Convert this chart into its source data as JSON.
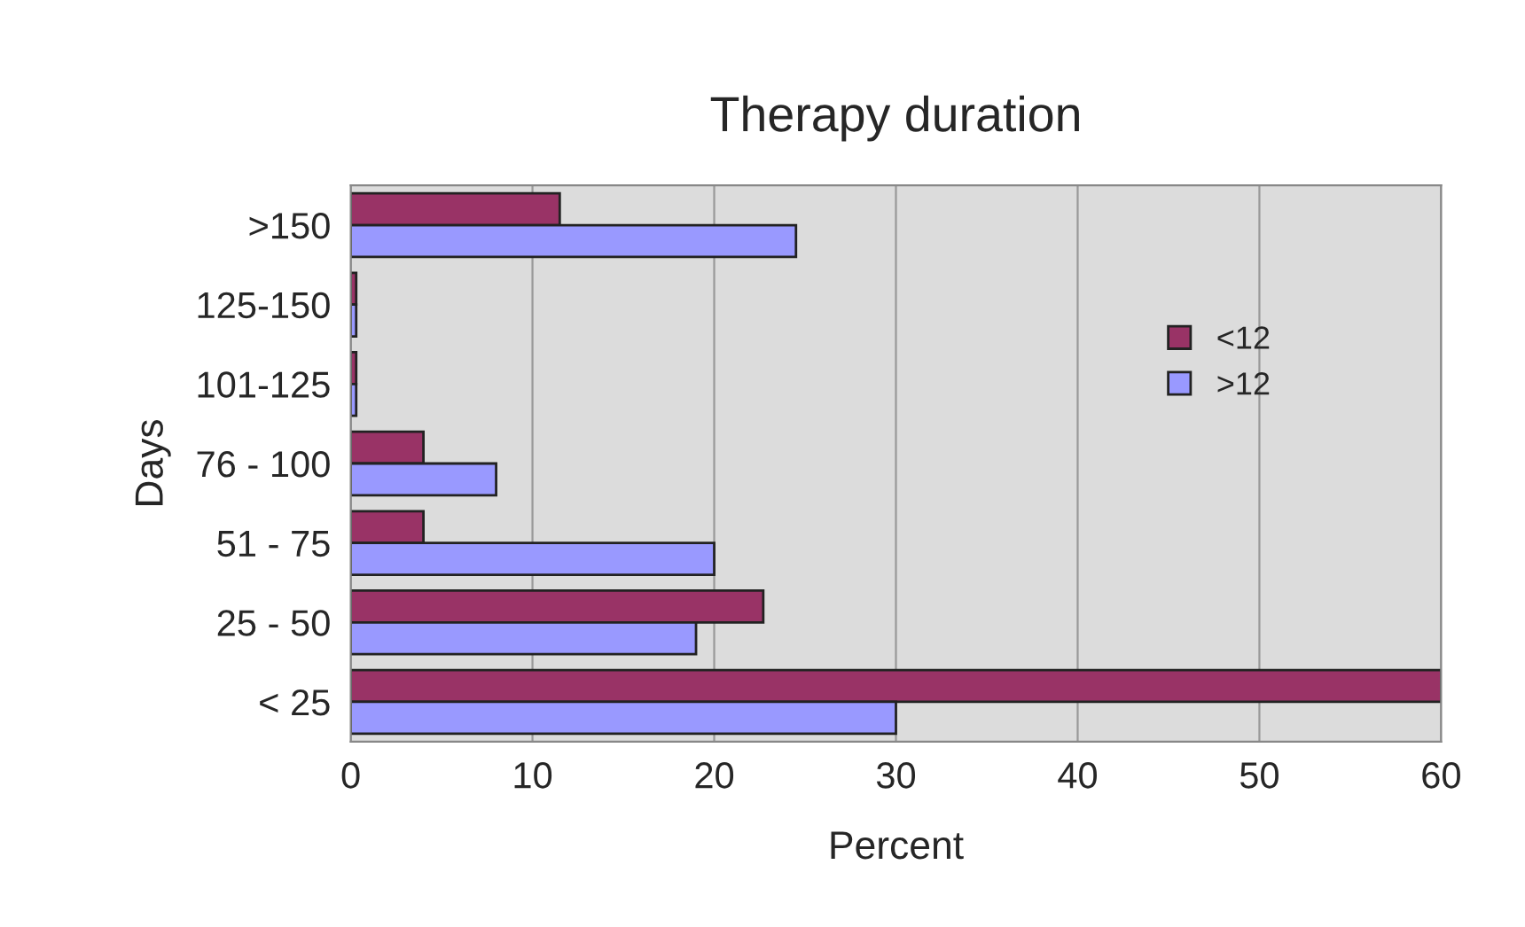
{
  "chart_data": {
    "type": "bar",
    "orientation": "horizontal",
    "title": "Therapy duration",
    "xlabel": "Percent",
    "ylabel": "Days",
    "categories": [
      ">150",
      "125-150",
      "101-125",
      "76 - 100",
      "51 - 75",
      "25 - 50",
      "< 25"
    ],
    "series": [
      {
        "name": "<12",
        "color": "#993366",
        "values": [
          11.5,
          0.3,
          0.3,
          4,
          4,
          22.7,
          60
        ]
      },
      {
        "name": ">12",
        "color": "#9999ff",
        "values": [
          24.5,
          0.3,
          0.3,
          8,
          20,
          19,
          30
        ]
      }
    ],
    "xlim": [
      0,
      60
    ],
    "xticks": [
      0,
      10,
      20,
      30,
      40,
      50,
      60
    ],
    "grid": "x",
    "legend": "right"
  }
}
